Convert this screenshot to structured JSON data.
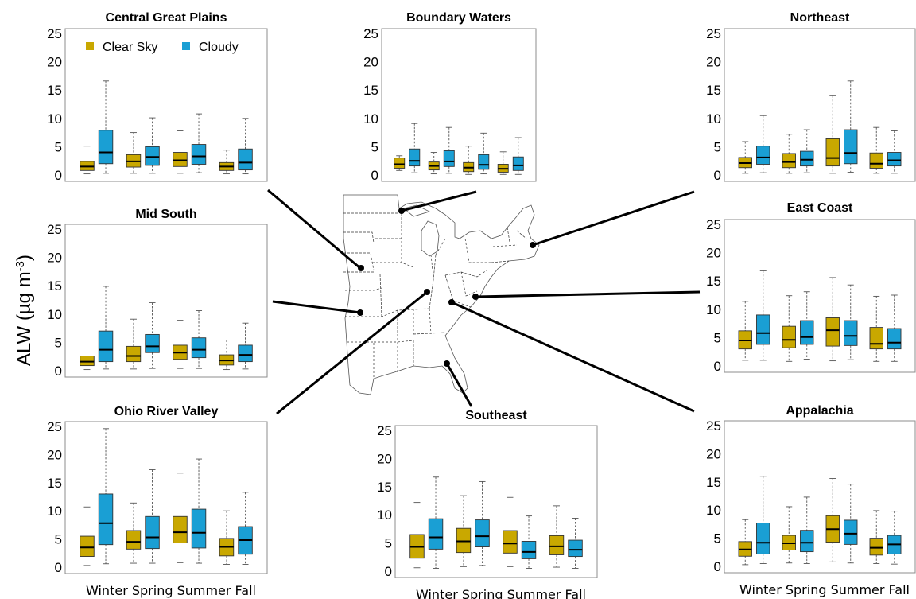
{
  "ylabel": "ALW (µg m",
  "ylabel_sup": "-3",
  "ylabel_close": ")",
  "legend": {
    "clear": "Clear Sky",
    "cloudy": "Cloudy"
  },
  "colors": {
    "clear": "#c9a800",
    "cloudy": "#1a9fd4"
  },
  "season_labels": "Winter Spring Summer Fall",
  "map_icon": "eastern-us-map",
  "chart_data": [
    {
      "type": "box",
      "title": "Central Great Plains",
      "categories": [
        "Winter",
        "Spring",
        "Summer",
        "Fall"
      ],
      "ylim": [
        0,
        25
      ],
      "yticks": [
        0,
        5,
        10,
        15,
        20,
        25
      ],
      "series": [
        {
          "name": "Clear Sky",
          "boxes": [
            {
              "min": 0.2,
              "q1": 0.8,
              "median": 1.5,
              "q3": 2.4,
              "max": 5.1
            },
            {
              "min": 0.3,
              "q1": 1.4,
              "median": 2.4,
              "q3": 3.6,
              "max": 7.5
            },
            {
              "min": 0.3,
              "q1": 1.5,
              "median": 2.6,
              "q3": 4.0,
              "max": 7.8
            },
            {
              "min": 0.2,
              "q1": 0.8,
              "median": 1.5,
              "q3": 2.2,
              "max": 4.4
            }
          ]
        },
        {
          "name": "Cloudy",
          "boxes": [
            {
              "min": 0.3,
              "q1": 2.0,
              "median": 4.0,
              "q3": 7.9,
              "max": 16.6
            },
            {
              "min": 0.3,
              "q1": 1.7,
              "median": 3.2,
              "q3": 5.0,
              "max": 10.1
            },
            {
              "min": 0.4,
              "q1": 1.9,
              "median": 3.3,
              "q3": 5.4,
              "max": 10.8
            },
            {
              "min": 0.2,
              "q1": 0.9,
              "median": 2.2,
              "q3": 4.6,
              "max": 10.0
            }
          ]
        }
      ]
    },
    {
      "type": "box",
      "title": "Boundary Waters",
      "categories": [
        "Winter",
        "Spring",
        "Summer",
        "Fall"
      ],
      "ylim": [
        0,
        25
      ],
      "yticks": [
        0,
        5,
        10,
        15,
        20,
        25
      ],
      "series": [
        {
          "name": "Clear Sky",
          "boxes": [
            {
              "min": 0.8,
              "q1": 1.2,
              "median": 1.9,
              "q3": 3.0,
              "max": 3.4
            },
            {
              "min": 0.2,
              "q1": 0.9,
              "median": 1.6,
              "q3": 2.3,
              "max": 4.0
            },
            {
              "min": 0.1,
              "q1": 0.6,
              "median": 1.3,
              "q3": 2.2,
              "max": 5.1
            },
            {
              "min": 0.1,
              "q1": 0.5,
              "median": 1.1,
              "q3": 1.9,
              "max": 4.1
            }
          ]
        },
        {
          "name": "Cloudy",
          "boxes": [
            {
              "min": 0.4,
              "q1": 1.6,
              "median": 2.5,
              "q3": 4.6,
              "max": 9.1
            },
            {
              "min": 0.3,
              "q1": 1.5,
              "median": 2.4,
              "q3": 4.3,
              "max": 8.4
            },
            {
              "min": 0.2,
              "q1": 1.0,
              "median": 1.8,
              "q3": 3.6,
              "max": 7.4
            },
            {
              "min": 0.1,
              "q1": 0.8,
              "median": 1.7,
              "q3": 3.2,
              "max": 6.6
            }
          ]
        }
      ]
    },
    {
      "type": "box",
      "title": "Northeast",
      "categories": [
        "Winter",
        "Spring",
        "Summer",
        "Fall"
      ],
      "ylim": [
        0,
        25
      ],
      "yticks": [
        0,
        5,
        10,
        15,
        20,
        25
      ],
      "series": [
        {
          "name": "Clear Sky",
          "boxes": [
            {
              "min": 0.3,
              "q1": 1.3,
              "median": 2.1,
              "q3": 3.1,
              "max": 5.9
            },
            {
              "min": 0.3,
              "q1": 1.3,
              "median": 2.3,
              "q3": 3.8,
              "max": 7.2
            },
            {
              "min": 0.3,
              "q1": 1.6,
              "median": 3.0,
              "q3": 6.4,
              "max": 14.0
            },
            {
              "min": 0.3,
              "q1": 1.2,
              "median": 2.0,
              "q3": 3.9,
              "max": 8.4
            }
          ]
        },
        {
          "name": "Cloudy",
          "boxes": [
            {
              "min": 0.4,
              "q1": 1.9,
              "median": 3.1,
              "q3": 5.1,
              "max": 10.5
            },
            {
              "min": 0.4,
              "q1": 1.6,
              "median": 2.7,
              "q3": 4.2,
              "max": 8.0
            },
            {
              "min": 0.5,
              "q1": 2.0,
              "median": 3.9,
              "q3": 8.0,
              "max": 16.6
            },
            {
              "min": 0.3,
              "q1": 1.6,
              "median": 2.6,
              "q3": 4.0,
              "max": 7.8
            }
          ]
        }
      ]
    },
    {
      "type": "box",
      "title": "Mid South",
      "categories": [
        "Winter",
        "Spring",
        "Summer",
        "Fall"
      ],
      "ylim": [
        0,
        25
      ],
      "yticks": [
        0,
        5,
        10,
        15,
        20,
        25
      ],
      "series": [
        {
          "name": "Clear Sky",
          "boxes": [
            {
              "min": 0.2,
              "q1": 0.9,
              "median": 1.6,
              "q3": 2.6,
              "max": 5.4
            },
            {
              "min": 0.3,
              "q1": 1.6,
              "median": 2.6,
              "q3": 4.3,
              "max": 9.1
            },
            {
              "min": 0.4,
              "q1": 2.0,
              "median": 3.2,
              "q3": 4.5,
              "max": 8.9
            },
            {
              "min": 0.2,
              "q1": 1.0,
              "median": 1.8,
              "q3": 2.8,
              "max": 5.4
            }
          ]
        },
        {
          "name": "Cloudy",
          "boxes": [
            {
              "min": 0.3,
              "q1": 1.6,
              "median": 3.7,
              "q3": 7.0,
              "max": 14.9
            },
            {
              "min": 0.4,
              "q1": 3.2,
              "median": 4.3,
              "q3": 6.4,
              "max": 12.0
            },
            {
              "min": 0.4,
              "q1": 2.3,
              "median": 3.7,
              "q3": 5.8,
              "max": 10.6
            },
            {
              "min": 0.3,
              "q1": 1.6,
              "median": 2.8,
              "q3": 4.5,
              "max": 8.4
            }
          ]
        }
      ]
    },
    {
      "type": "box",
      "title": "East Coast",
      "categories": [
        "Winter",
        "Spring",
        "Summer",
        "Fall"
      ],
      "ylim": [
        0,
        25
      ],
      "yticks": [
        0,
        5,
        10,
        15,
        20,
        25
      ],
      "series": [
        {
          "name": "Clear Sky",
          "boxes": [
            {
              "min": 1.0,
              "q1": 3.0,
              "median": 4.5,
              "q3": 6.2,
              "max": 11.4
            },
            {
              "min": 0.8,
              "q1": 3.2,
              "median": 4.6,
              "q3": 7.0,
              "max": 12.4
            },
            {
              "min": 0.9,
              "q1": 3.5,
              "median": 6.3,
              "q3": 8.5,
              "max": 15.6
            },
            {
              "min": 0.8,
              "q1": 3.0,
              "median": 3.9,
              "q3": 6.8,
              "max": 12.3
            }
          ]
        },
        {
          "name": "Cloudy",
          "boxes": [
            {
              "min": 1.0,
              "q1": 3.8,
              "median": 5.8,
              "q3": 9.0,
              "max": 16.8
            },
            {
              "min": 1.2,
              "q1": 3.8,
              "median": 5.1,
              "q3": 8.0,
              "max": 13.1
            },
            {
              "min": 1.1,
              "q1": 3.6,
              "median": 5.3,
              "q3": 8.0,
              "max": 14.3
            },
            {
              "min": 0.8,
              "q1": 3.0,
              "median": 4.1,
              "q3": 6.6,
              "max": 12.5
            }
          ]
        }
      ]
    },
    {
      "type": "box",
      "title": "Ohio River Valley",
      "categories": [
        "Winter",
        "Spring",
        "Summer",
        "Fall"
      ],
      "ylim": [
        0,
        25
      ],
      "yticks": [
        0,
        5,
        10,
        15,
        20,
        25
      ],
      "series": [
        {
          "name": "Clear Sky",
          "boxes": [
            {
              "min": 0.3,
              "q1": 1.9,
              "median": 3.5,
              "q3": 5.5,
              "max": 10.7
            },
            {
              "min": 0.7,
              "q1": 3.2,
              "median": 4.5,
              "q3": 6.5,
              "max": 11.4
            },
            {
              "min": 0.8,
              "q1": 4.3,
              "median": 6.2,
              "q3": 9.0,
              "max": 16.7
            },
            {
              "min": 0.5,
              "q1": 2.0,
              "median": 3.6,
              "q3": 5.1,
              "max": 10.0
            }
          ]
        },
        {
          "name": "Cloudy",
          "boxes": [
            {
              "min": 0.6,
              "q1": 4.0,
              "median": 7.8,
              "q3": 13.0,
              "max": 24.6
            },
            {
              "min": 0.7,
              "q1": 3.3,
              "median": 5.3,
              "q3": 9.0,
              "max": 17.3
            },
            {
              "min": 0.7,
              "q1": 3.4,
              "median": 6.1,
              "q3": 10.3,
              "max": 19.2
            },
            {
              "min": 0.5,
              "q1": 2.3,
              "median": 4.8,
              "q3": 7.2,
              "max": 13.3
            }
          ]
        }
      ]
    },
    {
      "type": "box",
      "title": "Southeast",
      "categories": [
        "Winter",
        "Spring",
        "Summer",
        "Fall"
      ],
      "ylim": [
        0,
        25
      ],
      "yticks": [
        0,
        5,
        10,
        15,
        20,
        25
      ],
      "series": [
        {
          "name": "Clear Sky",
          "boxes": [
            {
              "min": 0.6,
              "q1": 2.3,
              "median": 4.3,
              "q3": 6.5,
              "max": 12.2
            },
            {
              "min": 0.8,
              "q1": 3.3,
              "median": 5.3,
              "q3": 7.6,
              "max": 13.4
            },
            {
              "min": 0.8,
              "q1": 3.2,
              "median": 4.9,
              "q3": 7.2,
              "max": 13.1
            },
            {
              "min": 0.7,
              "q1": 2.9,
              "median": 4.4,
              "q3": 6.3,
              "max": 11.6
            }
          ]
        },
        {
          "name": "Cloudy",
          "boxes": [
            {
              "min": 0.5,
              "q1": 3.9,
              "median": 6.0,
              "q3": 9.3,
              "max": 16.7
            },
            {
              "min": 1.0,
              "q1": 4.3,
              "median": 6.2,
              "q3": 9.1,
              "max": 15.9
            },
            {
              "min": 0.5,
              "q1": 2.2,
              "median": 3.4,
              "q3": 5.3,
              "max": 9.8
            },
            {
              "min": 0.5,
              "q1": 2.6,
              "median": 3.8,
              "q3": 5.5,
              "max": 9.4
            }
          ]
        }
      ]
    },
    {
      "type": "box",
      "title": "Appalachia",
      "categories": [
        "Winter",
        "Spring",
        "Summer",
        "Fall"
      ],
      "ylim": [
        0,
        25
      ],
      "yticks": [
        0,
        5,
        10,
        15,
        20,
        25
      ],
      "series": [
        {
          "name": "Clear Sky",
          "boxes": [
            {
              "min": 0.3,
              "q1": 1.8,
              "median": 3.0,
              "q3": 4.4,
              "max": 8.3
            },
            {
              "min": 0.6,
              "q1": 2.9,
              "median": 4.1,
              "q3": 5.5,
              "max": 10.6
            },
            {
              "min": 0.8,
              "q1": 4.3,
              "median": 6.6,
              "q3": 9.0,
              "max": 15.6
            },
            {
              "min": 0.5,
              "q1": 2.0,
              "median": 3.3,
              "q3": 5.0,
              "max": 9.9
            }
          ]
        },
        {
          "name": "Cloudy",
          "boxes": [
            {
              "min": 0.5,
              "q1": 2.2,
              "median": 4.2,
              "q3": 7.7,
              "max": 16.0
            },
            {
              "min": 0.5,
              "q1": 2.6,
              "median": 4.2,
              "q3": 6.4,
              "max": 12.3
            },
            {
              "min": 0.6,
              "q1": 3.9,
              "median": 5.8,
              "q3": 8.2,
              "max": 14.6
            },
            {
              "min": 0.4,
              "q1": 2.2,
              "median": 3.9,
              "q3": 5.5,
              "max": 9.8
            }
          ]
        }
      ]
    }
  ]
}
